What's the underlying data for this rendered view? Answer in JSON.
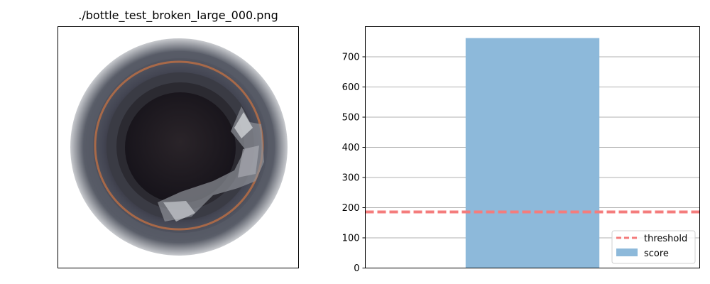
{
  "image_panel": {
    "title": "./bottle_test_broken_large_000.png",
    "description": "top-down photo of a bottle mouth with a broken, chipped rim"
  },
  "colors": {
    "bar": "#8db9da",
    "threshold": "#f47c7c",
    "grid": "#b0b0b0",
    "axis": "#000000",
    "bottle_dark": "#1f1b22",
    "bottle_rim": "#3c3f4b",
    "copper": "#b76d45"
  },
  "chart_data": {
    "type": "bar",
    "categories": [
      ""
    ],
    "series": [
      {
        "name": "score",
        "values": [
          762
        ]
      }
    ],
    "threshold": {
      "name": "threshold",
      "value": 186,
      "style": "dashed"
    },
    "ylim": [
      0,
      800
    ],
    "yticks": [
      0,
      100,
      200,
      300,
      400,
      500,
      600,
      700
    ],
    "grid": "horizontal",
    "legend_position": "lower-right",
    "legend": [
      "threshold",
      "score"
    ]
  }
}
